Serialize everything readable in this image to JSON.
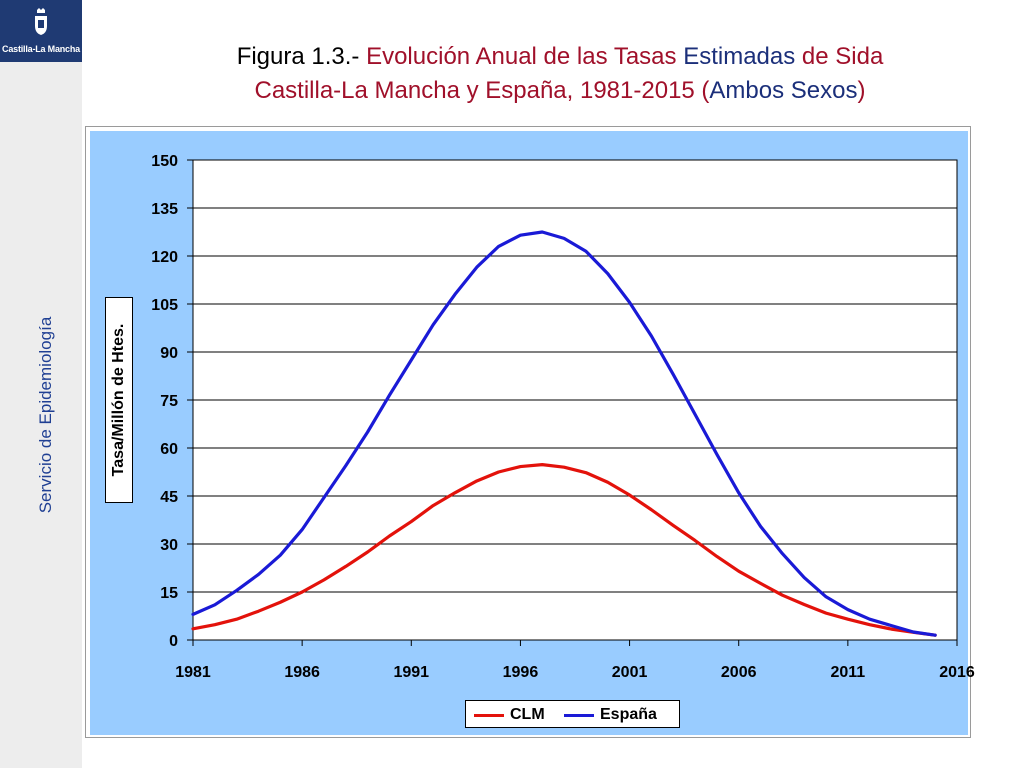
{
  "sidebar": {
    "logo_text": "Castilla-La Mancha",
    "label": "Servicio de Epidemiología"
  },
  "title": {
    "segments": [
      {
        "text": "Figura 1.3.- ",
        "color": "#000000"
      },
      {
        "text": "Evolución Anual de las Tasas ",
        "color": "#a0102a"
      },
      {
        "text": "Estimadas",
        "color": "#1b2f7a"
      },
      {
        "text": " de Sida",
        "color": "#a0102a"
      }
    ],
    "line2": [
      {
        "text": "Castilla-La Mancha y España, 1981-2015 (",
        "color": "#a0102a"
      },
      {
        "text": "Ambos Sexos",
        "color": "#1b2f7a"
      },
      {
        "text": ")",
        "color": "#a0102a"
      }
    ]
  },
  "chart_data": {
    "type": "line",
    "title": "Figura 1.3.- Evolución Anual de las Tasas Estimadas de Sida Castilla-La Mancha y España, 1981-2015 (Ambos Sexos)",
    "ylabel": "Tasa/Millón de Htes.",
    "xlabel": "",
    "xlim": [
      1981,
      2016
    ],
    "ylim": [
      0,
      150
    ],
    "x_ticks": [
      1981,
      1986,
      1991,
      1996,
      2001,
      2006,
      2011,
      2016
    ],
    "y_ticks": [
      0,
      15,
      30,
      45,
      60,
      75,
      90,
      105,
      120,
      135,
      150
    ],
    "grid": "horizontal",
    "legend_position": "bottom",
    "x": [
      1981,
      1982,
      1983,
      1984,
      1985,
      1986,
      1987,
      1988,
      1989,
      1990,
      1991,
      1992,
      1993,
      1994,
      1995,
      1996,
      1997,
      1998,
      1999,
      2000,
      2001,
      2002,
      2003,
      2004,
      2005,
      2006,
      2007,
      2008,
      2009,
      2010,
      2011,
      2012,
      2013,
      2014,
      2015
    ],
    "series": [
      {
        "name": "CLM",
        "color": "#e3120b",
        "values": [
          3.5,
          4.8,
          6.5,
          9,
          11.8,
          15,
          18.8,
          23,
          27.5,
          32.5,
          37,
          42,
          46,
          49.7,
          52.5,
          54.2,
          54.8,
          54,
          52.3,
          49.3,
          45.3,
          40.7,
          35.8,
          31.1,
          26.1,
          21.5,
          17.7,
          14,
          11.1,
          8.4,
          6.5,
          4.8,
          3.4,
          2.4,
          1.5
        ]
      },
      {
        "name": "España",
        "color": "#1a1ad6",
        "values": [
          8,
          11,
          15.5,
          20.5,
          26.5,
          34.5,
          44.5,
          54.5,
          65,
          76.5,
          87.5,
          98.5,
          108,
          116.5,
          123,
          126.5,
          127.5,
          125.5,
          121.5,
          114.5,
          105.5,
          95,
          83,
          70.5,
          58,
          46,
          35.5,
          27,
          19.5,
          13.5,
          9.5,
          6.5,
          4.5,
          2.5,
          1.5
        ]
      }
    ]
  }
}
